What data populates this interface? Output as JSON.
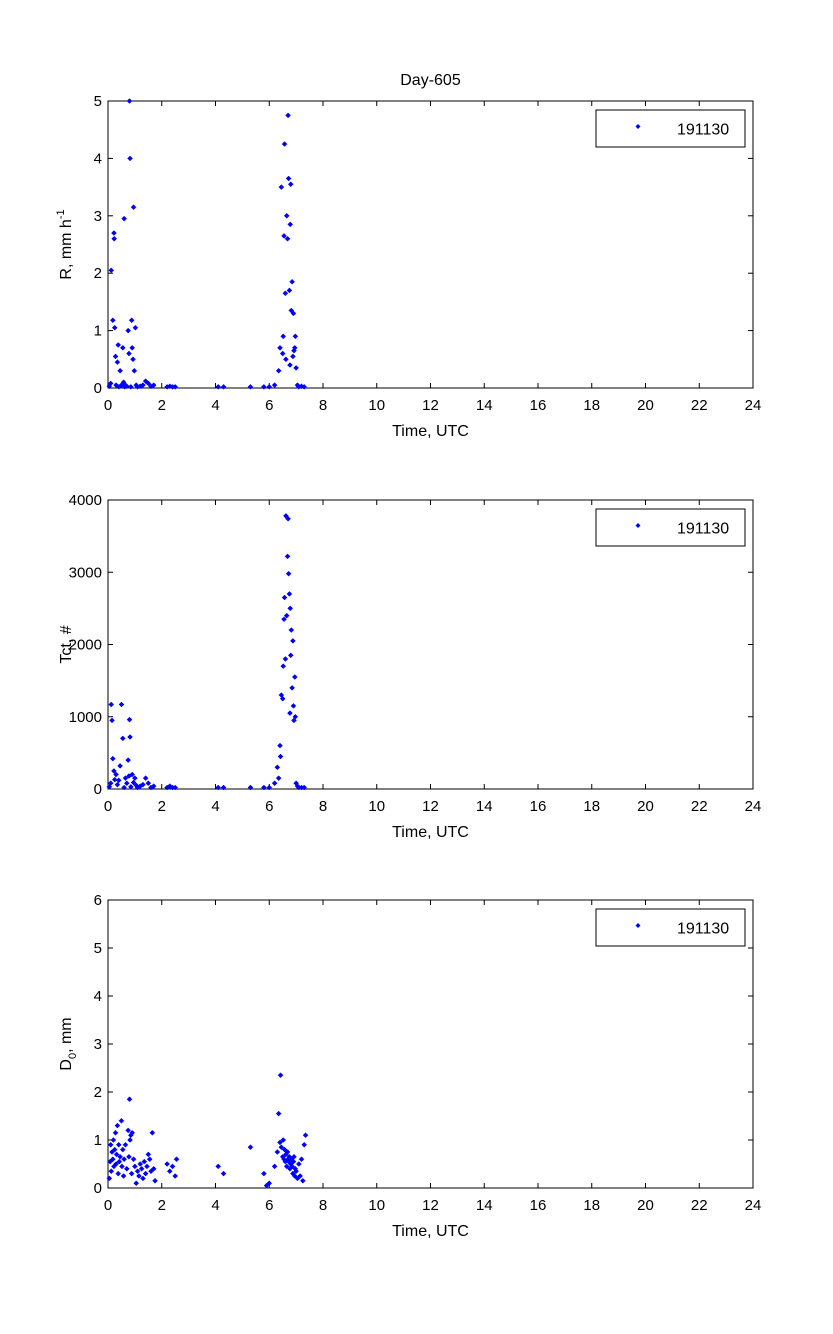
{
  "figure_title": "Day-605",
  "chart_data": [
    {
      "type": "scatter",
      "title": "Day-605",
      "xlabel": "Time, UTC",
      "ylabel": {
        "base": "R, mm h",
        "sup": "-1"
      },
      "xlim": [
        0,
        24
      ],
      "ylim": [
        0,
        5
      ],
      "xticks": [
        "0",
        "2",
        "4",
        "6",
        "8",
        "10",
        "12",
        "14",
        "16",
        "18",
        "20",
        "22",
        "24"
      ],
      "yticks": [
        "0",
        "1",
        "2",
        "3",
        "4",
        "5"
      ],
      "legend": "top-right",
      "grid": false,
      "series": [
        {
          "name": "191130",
          "color": "#0000ff",
          "points": [
            [
              0.05,
              0.03
            ],
            [
              0.1,
              0.08
            ],
            [
              0.12,
              2.05
            ],
            [
              0.18,
              1.18
            ],
            [
              0.22,
              2.7
            ],
            [
              0.23,
              2.6
            ],
            [
              0.25,
              1.05
            ],
            [
              0.28,
              0.55
            ],
            [
              0.3,
              0.05
            ],
            [
              0.35,
              0.45
            ],
            [
              0.38,
              0.75
            ],
            [
              0.4,
              0.02
            ],
            [
              0.45,
              0.3
            ],
            [
              0.5,
              0.05
            ],
            [
              0.55,
              0.7
            ],
            [
              0.58,
              0.1
            ],
            [
              0.6,
              2.95
            ],
            [
              0.62,
              0.02
            ],
            [
              0.65,
              0.05
            ],
            [
              0.7,
              0.03
            ],
            [
              0.75,
              1.0
            ],
            [
              0.78,
              0.6
            ],
            [
              0.8,
              5.0
            ],
            [
              0.82,
              4.0
            ],
            [
              0.85,
              0.02
            ],
            [
              0.88,
              1.18
            ],
            [
              0.9,
              0.7
            ],
            [
              0.93,
              0.5
            ],
            [
              0.95,
              3.15
            ],
            [
              0.98,
              0.3
            ],
            [
              1.02,
              1.05
            ],
            [
              1.05,
              0.05
            ],
            [
              1.1,
              0.02
            ],
            [
              1.2,
              0.03
            ],
            [
              1.3,
              0.05
            ],
            [
              1.4,
              0.12
            ],
            [
              1.5,
              0.08
            ],
            [
              1.6,
              0.03
            ],
            [
              1.7,
              0.05
            ],
            [
              2.2,
              0.02
            ],
            [
              2.3,
              0.03
            ],
            [
              2.4,
              0.02
            ],
            [
              2.5,
              0.02
            ],
            [
              4.1,
              0.02
            ],
            [
              4.3,
              0.02
            ],
            [
              5.3,
              0.02
            ],
            [
              5.8,
              0.02
            ],
            [
              6.0,
              0.02
            ],
            [
              6.2,
              0.05
            ],
            [
              6.35,
              0.3
            ],
            [
              6.4,
              0.7
            ],
            [
              6.45,
              3.5
            ],
            [
              6.5,
              0.6
            ],
            [
              6.52,
              0.9
            ],
            [
              6.55,
              2.65
            ],
            [
              6.57,
              4.25
            ],
            [
              6.6,
              1.65
            ],
            [
              6.62,
              0.5
            ],
            [
              6.65,
              3.0
            ],
            [
              6.68,
              2.6
            ],
            [
              6.7,
              4.75
            ],
            [
              6.72,
              3.65
            ],
            [
              6.75,
              1.7
            ],
            [
              6.77,
              0.4
            ],
            [
              6.78,
              2.85
            ],
            [
              6.8,
              3.55
            ],
            [
              6.82,
              1.35
            ],
            [
              6.85,
              1.85
            ],
            [
              6.88,
              0.55
            ],
            [
              6.9,
              1.3
            ],
            [
              6.92,
              0.65
            ],
            [
              6.95,
              0.7
            ],
            [
              6.97,
              0.9
            ],
            [
              7.0,
              0.35
            ],
            [
              7.05,
              0.05
            ],
            [
              7.1,
              0.02
            ],
            [
              7.2,
              0.03
            ],
            [
              7.3,
              0.02
            ]
          ]
        }
      ]
    },
    {
      "type": "scatter",
      "title": "",
      "xlabel": "Time, UTC",
      "ylabel": {
        "base": "Tct, #",
        "sup": ""
      },
      "xlim": [
        0,
        24
      ],
      "ylim": [
        0,
        4000
      ],
      "xticks": [
        "0",
        "2",
        "4",
        "6",
        "8",
        "10",
        "12",
        "14",
        "16",
        "18",
        "20",
        "22",
        "24"
      ],
      "yticks": [
        "0",
        "1000",
        "2000",
        "3000",
        "4000"
      ],
      "legend": "top-right",
      "grid": false,
      "series": [
        {
          "name": "191130",
          "color": "#0000ff",
          "points": [
            [
              0.05,
              30
            ],
            [
              0.1,
              80
            ],
            [
              0.12,
              1170
            ],
            [
              0.15,
              950
            ],
            [
              0.18,
              420
            ],
            [
              0.22,
              250
            ],
            [
              0.25,
              130
            ],
            [
              0.3,
              200
            ],
            [
              0.35,
              60
            ],
            [
              0.4,
              120
            ],
            [
              0.45,
              320
            ],
            [
              0.5,
              1170
            ],
            [
              0.55,
              700
            ],
            [
              0.6,
              20
            ],
            [
              0.65,
              150
            ],
            [
              0.7,
              80
            ],
            [
              0.75,
              400
            ],
            [
              0.78,
              180
            ],
            [
              0.8,
              960
            ],
            [
              0.82,
              720
            ],
            [
              0.85,
              30
            ],
            [
              0.9,
              200
            ],
            [
              0.95,
              90
            ],
            [
              1.0,
              150
            ],
            [
              1.05,
              50
            ],
            [
              1.1,
              20
            ],
            [
              1.2,
              40
            ],
            [
              1.3,
              60
            ],
            [
              1.4,
              150
            ],
            [
              1.5,
              80
            ],
            [
              1.6,
              20
            ],
            [
              1.7,
              40
            ],
            [
              2.2,
              20
            ],
            [
              2.3,
              40
            ],
            [
              2.4,
              20
            ],
            [
              2.5,
              20
            ],
            [
              4.1,
              20
            ],
            [
              4.3,
              20
            ],
            [
              5.3,
              20
            ],
            [
              5.8,
              20
            ],
            [
              6.0,
              20
            ],
            [
              6.2,
              80
            ],
            [
              6.3,
              300
            ],
            [
              6.35,
              150
            ],
            [
              6.4,
              600
            ],
            [
              6.42,
              450
            ],
            [
              6.45,
              1300
            ],
            [
              6.5,
              1250
            ],
            [
              6.52,
              1700
            ],
            [
              6.55,
              2350
            ],
            [
              6.57,
              2650
            ],
            [
              6.6,
              1800
            ],
            [
              6.62,
              3780
            ],
            [
              6.65,
              2400
            ],
            [
              6.68,
              3220
            ],
            [
              6.7,
              3740
            ],
            [
              6.72,
              2980
            ],
            [
              6.75,
              2700
            ],
            [
              6.77,
              1050
            ],
            [
              6.78,
              2500
            ],
            [
              6.8,
              1850
            ],
            [
              6.82,
              2200
            ],
            [
              6.85,
              1400
            ],
            [
              6.88,
              2050
            ],
            [
              6.9,
              1150
            ],
            [
              6.92,
              950
            ],
            [
              6.95,
              1550
            ],
            [
              6.97,
              1000
            ],
            [
              7.0,
              80
            ],
            [
              7.05,
              40
            ],
            [
              7.1,
              20
            ],
            [
              7.2,
              20
            ],
            [
              7.3,
              20
            ]
          ]
        }
      ]
    },
    {
      "type": "scatter",
      "title": "",
      "xlabel": "Time, UTC",
      "ylabel": {
        "base": "D",
        "sub": "0",
        "suffix": ", mm"
      },
      "xlim": [
        0,
        24
      ],
      "ylim": [
        0,
        6
      ],
      "xticks": [
        "0",
        "2",
        "4",
        "6",
        "8",
        "10",
        "12",
        "14",
        "16",
        "18",
        "20",
        "22",
        "24"
      ],
      "yticks": [
        "0",
        "1",
        "2",
        "3",
        "4",
        "5",
        "6"
      ],
      "legend": "top-right",
      "grid": false,
      "series": [
        {
          "name": "191130",
          "color": "#0000ff",
          "points": [
            [
              0.05,
              0.2
            ],
            [
              0.08,
              0.55
            ],
            [
              0.1,
              0.9
            ],
            [
              0.12,
              0.35
            ],
            [
              0.15,
              0.75
            ],
            [
              0.18,
              0.6
            ],
            [
              0.2,
              1.0
            ],
            [
              0.22,
              0.45
            ],
            [
              0.25,
              0.8
            ],
            [
              0.28,
              1.15
            ],
            [
              0.3,
              0.5
            ],
            [
              0.32,
              0.7
            ],
            [
              0.35,
              1.3
            ],
            [
              0.38,
              0.3
            ],
            [
              0.4,
              0.9
            ],
            [
              0.42,
              0.55
            ],
            [
              0.45,
              0.65
            ],
            [
              0.5,
              1.4
            ],
            [
              0.52,
              0.45
            ],
            [
              0.55,
              0.8
            ],
            [
              0.58,
              0.25
            ],
            [
              0.6,
              0.6
            ],
            [
              0.65,
              0.9
            ],
            [
              0.7,
              0.4
            ],
            [
              0.75,
              1.2
            ],
            [
              0.78,
              0.65
            ],
            [
              0.8,
              1.85
            ],
            [
              0.82,
              1.0
            ],
            [
              0.85,
              1.1
            ],
            [
              0.88,
              0.3
            ],
            [
              0.9,
              1.15
            ],
            [
              0.95,
              0.6
            ],
            [
              1.0,
              0.45
            ],
            [
              1.05,
              0.1
            ],
            [
              1.1,
              0.35
            ],
            [
              1.15,
              0.25
            ],
            [
              1.2,
              0.5
            ],
            [
              1.25,
              0.4
            ],
            [
              1.3,
              0.2
            ],
            [
              1.35,
              0.55
            ],
            [
              1.4,
              0.3
            ],
            [
              1.45,
              0.45
            ],
            [
              1.5,
              0.7
            ],
            [
              1.55,
              0.6
            ],
            [
              1.6,
              0.35
            ],
            [
              1.65,
              1.15
            ],
            [
              1.7,
              0.4
            ],
            [
              1.75,
              0.15
            ],
            [
              2.2,
              0.5
            ],
            [
              2.3,
              0.35
            ],
            [
              2.4,
              0.45
            ],
            [
              2.5,
              0.25
            ],
            [
              2.55,
              0.6
            ],
            [
              4.1,
              0.45
            ],
            [
              4.3,
              0.3
            ],
            [
              5.3,
              0.85
            ],
            [
              5.8,
              0.3
            ],
            [
              5.9,
              0.05
            ],
            [
              6.0,
              0.1
            ],
            [
              6.2,
              0.45
            ],
            [
              6.3,
              0.75
            ],
            [
              6.35,
              1.55
            ],
            [
              6.4,
              0.95
            ],
            [
              6.42,
              2.35
            ],
            [
              6.45,
              0.85
            ],
            [
              6.5,
              0.65
            ],
            [
              6.52,
              1.0
            ],
            [
              6.55,
              0.6
            ],
            [
              6.57,
              0.8
            ],
            [
              6.6,
              0.55
            ],
            [
              6.62,
              0.7
            ],
            [
              6.65,
              0.45
            ],
            [
              6.68,
              0.75
            ],
            [
              6.7,
              0.6
            ],
            [
              6.72,
              0.55
            ],
            [
              6.75,
              0.65
            ],
            [
              6.77,
              0.4
            ],
            [
              6.8,
              0.5
            ],
            [
              6.82,
              0.6
            ],
            [
              6.85,
              0.45
            ],
            [
              6.88,
              0.3
            ],
            [
              6.9,
              0.55
            ],
            [
              6.92,
              0.65
            ],
            [
              6.95,
              0.25
            ],
            [
              6.97,
              0.4
            ],
            [
              7.0,
              0.35
            ],
            [
              7.05,
              0.2
            ],
            [
              7.1,
              0.5
            ],
            [
              7.15,
              0.25
            ],
            [
              7.2,
              0.6
            ],
            [
              7.25,
              0.15
            ],
            [
              7.3,
              0.9
            ],
            [
              7.35,
              1.1
            ]
          ]
        }
      ]
    }
  ]
}
